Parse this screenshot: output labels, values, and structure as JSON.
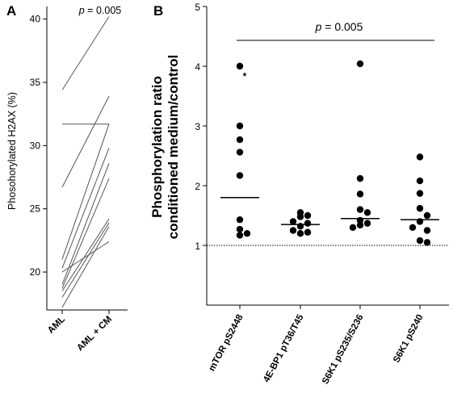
{
  "chart_data": [
    {
      "panel": "A",
      "type": "line",
      "categories": [
        "AML",
        "AML + CM"
      ],
      "ylabel": "Phosohorylated H2AX (%)",
      "ylim": [
        17,
        41
      ],
      "yticks": [
        "20",
        "25",
        "30",
        "35",
        "40"
      ],
      "annotation_italic": "p",
      "annotation_rest": " = 0.005",
      "pairs": [
        {
          "before": 34.4,
          "after": 40.2
        },
        {
          "before": 31.7,
          "after": 31.7
        },
        {
          "before": 26.7,
          "after": 33.9
        },
        {
          "before": 21.0,
          "after": 31.7
        },
        {
          "before": 20.3,
          "after": 29.8
        },
        {
          "before": 20.0,
          "after": 22.4
        },
        {
          "before": 19.0,
          "after": 28.6
        },
        {
          "before": 18.7,
          "after": 27.4
        },
        {
          "before": 18.5,
          "after": 24.2
        },
        {
          "before": 18.0,
          "after": 23.9
        },
        {
          "before": 17.2,
          "after": 23.6
        }
      ]
    },
    {
      "panel": "B",
      "type": "scatter",
      "categories": [
        "mTOR pS2448",
        "4E-BP1 pT36/T45",
        "S6K1 pS235/S236",
        "S6K1 pS240"
      ],
      "ylabel_line1": "Phosphorylation ratio",
      "ylabel_line2": "conditioned medium/control",
      "ylim": [
        0,
        5
      ],
      "yticks": [
        "1",
        "2",
        "3",
        "4",
        "5"
      ],
      "reference_line": 1,
      "annotation_italic": "p",
      "annotation_rest": " = 0.005",
      "star_label": "*",
      "series": [
        {
          "name": "mTOR pS2448",
          "values": [
            4.0,
            3.0,
            2.77,
            2.56,
            2.17,
            1.43,
            1.27,
            1.2,
            1.17
          ],
          "mean": 1.8
        },
        {
          "name": "4E-BP1 pT36/T45",
          "values": [
            1.55,
            1.5,
            1.48,
            1.4,
            1.37,
            1.32,
            1.25,
            1.2,
            1.22
          ],
          "mean": 1.35
        },
        {
          "name": "S6K1 pS235/S236",
          "values": [
            4.04,
            2.12,
            1.86,
            1.6,
            1.55,
            1.42,
            1.37,
            1.34,
            1.3
          ],
          "mean": 1.45
        },
        {
          "name": "S6K1 pS240",
          "values": [
            2.48,
            2.08,
            1.87,
            1.62,
            1.5,
            1.4,
            1.3,
            1.25,
            1.08,
            1.05
          ],
          "mean": 1.43
        }
      ]
    }
  ]
}
